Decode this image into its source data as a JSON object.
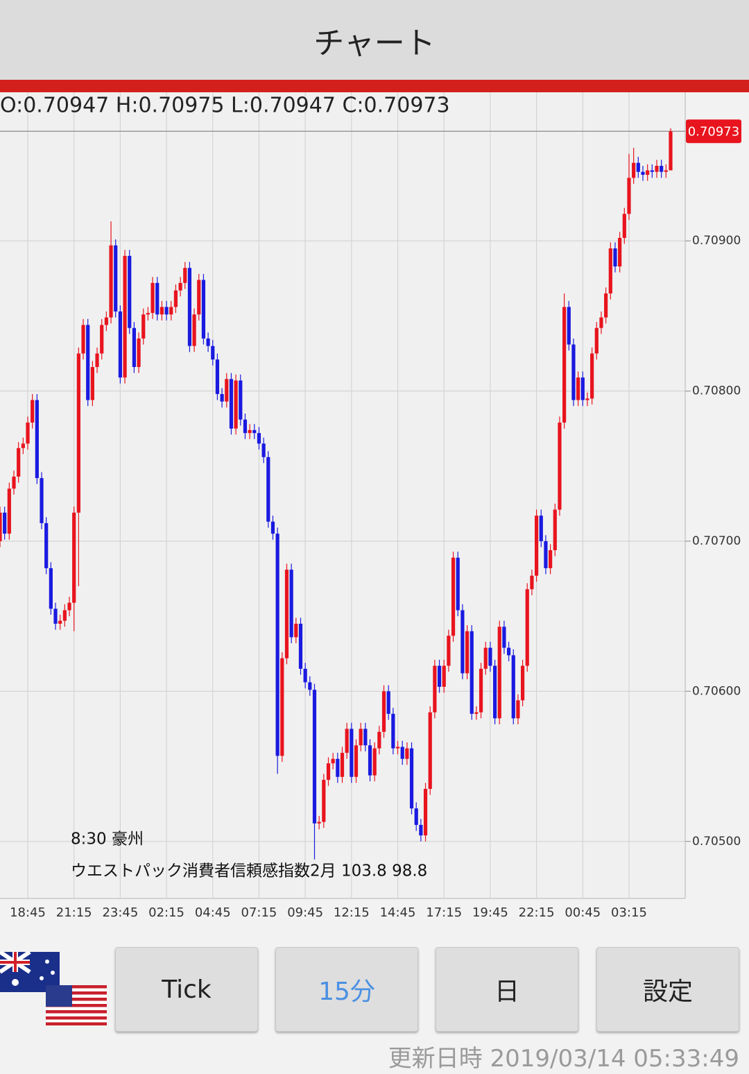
{
  "header": {
    "title": "チャート"
  },
  "chart_data": {
    "type": "candlestick",
    "ohlc_text": "O:0.70947 H:0.70975 L:0.70947 C:0.70973",
    "last_price": 0.70973,
    "annotations": [
      "8:30 豪州",
      "ウエストパック消費者信頼感指数2月 103.8 98.8"
    ],
    "up_color": "#e8141e",
    "down_color": "#1a1ae0",
    "grid": true,
    "ylim": [
      0.70462,
      0.70999
    ],
    "yticks": [
      {
        "value": 0.705,
        "label": "0.70500"
      },
      {
        "value": 0.706,
        "label": "0.70600"
      },
      {
        "value": 0.707,
        "label": "0.70700"
      },
      {
        "value": 0.708,
        "label": "0.70800"
      },
      {
        "value": 0.709,
        "label": "0.70900"
      }
    ],
    "categories": [
      null,
      null,
      null,
      null,
      null,
      null,
      "18:45",
      null,
      null,
      null,
      null,
      null,
      null,
      null,
      null,
      null,
      "21:15",
      null,
      null,
      null,
      null,
      null,
      null,
      null,
      null,
      null,
      "23:45",
      null,
      null,
      null,
      null,
      null,
      null,
      null,
      null,
      null,
      "02:15",
      null,
      null,
      null,
      null,
      null,
      null,
      null,
      null,
      null,
      "04:45",
      null,
      null,
      null,
      null,
      null,
      null,
      null,
      null,
      null,
      "07:15",
      null,
      null,
      null,
      null,
      null,
      null,
      null,
      null,
      null,
      "09:45",
      null,
      null,
      null,
      null,
      null,
      null,
      null,
      null,
      null,
      "12:15",
      null,
      null,
      null,
      null,
      null,
      null,
      null,
      null,
      null,
      "14:45",
      null,
      null,
      null,
      null,
      null,
      null,
      null,
      null,
      null,
      "17:15",
      null,
      null,
      null,
      null,
      null,
      null,
      null,
      null,
      null,
      "19:45",
      null,
      null,
      null,
      null,
      null,
      null,
      null,
      null,
      null,
      "22:15",
      null,
      null,
      null,
      null,
      null,
      null,
      null,
      null,
      null,
      "00:45",
      null,
      null,
      null,
      null,
      null,
      null,
      null,
      null,
      null,
      "03:15",
      null,
      null,
      null,
      null,
      null,
      null,
      null,
      null,
      null
    ],
    "open": [
      0.707,
      0.70719,
      0.70705,
      0.70735,
      0.70743,
      0.70762,
      0.70765,
      0.70779,
      0.70794,
      0.70742,
      0.70712,
      0.70682,
      0.70655,
      0.70645,
      0.70647,
      0.70654,
      0.70659,
      0.70719,
      0.70825,
      0.70844,
      0.70794,
      0.70816,
      0.70825,
      0.70844,
      0.70849,
      0.70897,
      0.70853,
      0.70809,
      0.7089,
      0.70842,
      0.70816,
      0.70835,
      0.70851,
      0.70852,
      0.70872,
      0.70851,
      0.70856,
      0.70851,
      0.70856,
      0.70867,
      0.70872,
      0.70882,
      0.7083,
      0.70851,
      0.70874,
      0.70835,
      0.7083,
      0.70821,
      0.70798,
      0.70793,
      0.70808,
      0.70775,
      0.70807,
      0.70781,
      0.70772,
      0.70774,
      0.70772,
      0.70765,
      0.70756,
      0.70713,
      0.70705,
      0.70557,
      0.70622,
      0.70681,
      0.70636,
      0.70645,
      0.70615,
      0.70606,
      0.70601,
      0.70512,
      0.70513,
      0.70541,
      0.70552,
      0.70555,
      0.70543,
      0.70559,
      0.70575,
      0.70543,
      0.70564,
      0.70575,
      0.70564,
      0.70544,
      0.70562,
      0.70573,
      0.706,
      0.70585,
      0.70562,
      0.70563,
      0.70555,
      0.70562,
      0.70522,
      0.70511,
      0.70504,
      0.70535,
      0.70586,
      0.70617,
      0.70603,
      0.70617,
      0.70637,
      0.70689,
      0.70654,
      0.70612,
      0.7064,
      0.70585,
      0.70586,
      0.70615,
      0.70629,
      0.70617,
      0.70582,
      0.70643,
      0.70629,
      0.70624,
      0.70582,
      0.70594,
      0.70617,
      0.70668,
      0.70677,
      0.70717,
      0.707,
      0.70682,
      0.70694,
      0.70721,
      0.70779,
      0.70856,
      0.70831,
      0.70794,
      0.70809,
      0.70794,
      0.70795,
      0.70825,
      0.70842,
      0.70849,
      0.70865,
      0.70895,
      0.70883,
      0.70902,
      0.70918,
      0.70942,
      0.70952,
      0.70946,
      0.70944,
      0.70947,
      0.70946,
      0.7095,
      0.70946,
      0.70947
    ],
    "high": [
      0.70723,
      0.70723,
      0.70739,
      0.70747,
      0.70766,
      0.70769,
      0.70783,
      0.70798,
      0.70798,
      0.70746,
      0.70716,
      0.70686,
      0.70659,
      0.70651,
      0.70658,
      0.70663,
      0.70723,
      0.70829,
      0.70848,
      0.70848,
      0.7082,
      0.70829,
      0.70848,
      0.70853,
      0.70913,
      0.70901,
      0.70857,
      0.70894,
      0.70894,
      0.70846,
      0.70839,
      0.70855,
      0.70856,
      0.70876,
      0.70876,
      0.7086,
      0.7086,
      0.7086,
      0.70871,
      0.70876,
      0.70886,
      0.70886,
      0.70855,
      0.70878,
      0.70878,
      0.70839,
      0.70834,
      0.70825,
      0.70802,
      0.70812,
      0.70812,
      0.70811,
      0.70811,
      0.70785,
      0.70778,
      0.70778,
      0.70776,
      0.70769,
      0.7076,
      0.70717,
      0.70709,
      0.70626,
      0.70685,
      0.70685,
      0.70649,
      0.70649,
      0.70619,
      0.7061,
      0.70605,
      0.70517,
      0.70545,
      0.70556,
      0.70559,
      0.70559,
      0.70563,
      0.70579,
      0.70579,
      0.70568,
      0.70579,
      0.70579,
      0.70568,
      0.70566,
      0.70577,
      0.70604,
      0.70604,
      0.70589,
      0.70567,
      0.70567,
      0.70566,
      0.70566,
      0.70526,
      0.70515,
      0.70539,
      0.7059,
      0.70621,
      0.70621,
      0.70621,
      0.70641,
      0.70693,
      0.70693,
      0.70658,
      0.70644,
      0.70644,
      0.7059,
      0.70619,
      0.70633,
      0.70633,
      0.70621,
      0.70647,
      0.70647,
      0.70633,
      0.70628,
      0.70598,
      0.70621,
      0.70672,
      0.70681,
      0.70721,
      0.70721,
      0.70704,
      0.70698,
      0.70725,
      0.70783,
      0.70865,
      0.7086,
      0.70835,
      0.70813,
      0.70813,
      0.70799,
      0.70829,
      0.70846,
      0.70853,
      0.70869,
      0.70899,
      0.70899,
      0.70906,
      0.70922,
      0.70958,
      0.70962,
      0.70956,
      0.7095,
      0.70951,
      0.70951,
      0.70954,
      0.70954,
      0.70951,
      0.70975
    ],
    "low": [
      0.70696,
      0.70701,
      0.70701,
      0.70731,
      0.70739,
      0.70758,
      0.70761,
      0.70775,
      0.70738,
      0.70708,
      0.70678,
      0.70651,
      0.70641,
      0.70641,
      0.70643,
      0.7065,
      0.7064,
      0.7067,
      0.70821,
      0.7079,
      0.7079,
      0.70812,
      0.70821,
      0.7084,
      0.70845,
      0.70849,
      0.70805,
      0.70805,
      0.70838,
      0.70812,
      0.70812,
      0.70831,
      0.70847,
      0.70848,
      0.70847,
      0.70847,
      0.70847,
      0.70847,
      0.70852,
      0.70863,
      0.70868,
      0.70826,
      0.70826,
      0.70847,
      0.70831,
      0.70826,
      0.70817,
      0.70794,
      0.70789,
      0.70789,
      0.70771,
      0.70771,
      0.70777,
      0.70768,
      0.70768,
      0.70768,
      0.70761,
      0.70752,
      0.70709,
      0.70701,
      0.70545,
      0.70553,
      0.70618,
      0.70632,
      0.70632,
      0.70611,
      0.70602,
      0.70597,
      0.70488,
      0.70508,
      0.70509,
      0.70537,
      0.70548,
      0.70539,
      0.70539,
      0.70555,
      0.70539,
      0.70539,
      0.7056,
      0.7056,
      0.7054,
      0.7054,
      0.70558,
      0.70569,
      0.70581,
      0.70558,
      0.70558,
      0.70551,
      0.70551,
      0.70518,
      0.70507,
      0.705,
      0.705,
      0.70531,
      0.70582,
      0.70599,
      0.70599,
      0.70613,
      0.70633,
      0.7065,
      0.70608,
      0.70608,
      0.70581,
      0.70581,
      0.70582,
      0.70611,
      0.70613,
      0.70578,
      0.70578,
      0.70625,
      0.7062,
      0.70578,
      0.70578,
      0.7059,
      0.70613,
      0.70664,
      0.70673,
      0.70696,
      0.70678,
      0.70678,
      0.7069,
      0.70717,
      0.70775,
      0.70827,
      0.7079,
      0.7079,
      0.7079,
      0.7079,
      0.70791,
      0.70821,
      0.70838,
      0.70845,
      0.70861,
      0.70879,
      0.70879,
      0.70898,
      0.70914,
      0.70938,
      0.70942,
      0.7094,
      0.7094,
      0.70942,
      0.70942,
      0.70942,
      0.70942,
      0.70947
    ],
    "close": [
      0.70719,
      0.70705,
      0.70735,
      0.70743,
      0.70762,
      0.70765,
      0.70779,
      0.70794,
      0.70742,
      0.70712,
      0.70682,
      0.70655,
      0.70645,
      0.70647,
      0.70654,
      0.70659,
      0.70719,
      0.70825,
      0.70844,
      0.70794,
      0.70816,
      0.70825,
      0.70844,
      0.70849,
      0.70897,
      0.70853,
      0.70809,
      0.7089,
      0.70842,
      0.70816,
      0.70835,
      0.70851,
      0.70852,
      0.70872,
      0.70851,
      0.70856,
      0.70851,
      0.70856,
      0.70867,
      0.70872,
      0.70882,
      0.7083,
      0.70851,
      0.70874,
      0.70835,
      0.7083,
      0.70821,
      0.70798,
      0.70793,
      0.70808,
      0.70775,
      0.70807,
      0.70781,
      0.70772,
      0.70774,
      0.70772,
      0.70765,
      0.70756,
      0.70713,
      0.70705,
      0.70557,
      0.70622,
      0.70681,
      0.70636,
      0.70645,
      0.70615,
      0.70606,
      0.70601,
      0.70512,
      0.70513,
      0.70541,
      0.70552,
      0.70555,
      0.70543,
      0.70559,
      0.70575,
      0.70543,
      0.70564,
      0.70575,
      0.70564,
      0.70544,
      0.70562,
      0.70573,
      0.706,
      0.70585,
      0.70562,
      0.70563,
      0.70555,
      0.70562,
      0.70522,
      0.70511,
      0.70504,
      0.70535,
      0.70586,
      0.70617,
      0.70603,
      0.70617,
      0.70637,
      0.70689,
      0.70654,
      0.70612,
      0.7064,
      0.70585,
      0.70586,
      0.70615,
      0.70629,
      0.70617,
      0.70582,
      0.70643,
      0.70629,
      0.70624,
      0.70582,
      0.70594,
      0.70617,
      0.70668,
      0.70677,
      0.70717,
      0.707,
      0.70682,
      0.70694,
      0.70721,
      0.70779,
      0.70856,
      0.70831,
      0.70794,
      0.70809,
      0.70794,
      0.70795,
      0.70825,
      0.70842,
      0.70849,
      0.70865,
      0.70895,
      0.70883,
      0.70902,
      0.70918,
      0.70942,
      0.70952,
      0.70946,
      0.70944,
      0.70947,
      0.70946,
      0.7095,
      0.70946,
      0.70947,
      0.70973
    ]
  },
  "buttons": [
    "Tick",
    "15分",
    "日",
    "設定"
  ],
  "footer": {
    "updated": "更新日時 2019/03/14 05:33:49"
  }
}
